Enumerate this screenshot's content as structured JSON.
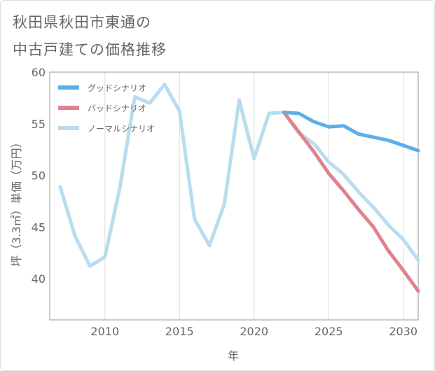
{
  "chart_data": {
    "type": "line",
    "title_line1": "秋田県秋田市東通の",
    "title_line2": "中古戸建ての価格推移",
    "xlabel": "年",
    "ylabel": "坪（3.3㎡）単価（万円）",
    "xlim": [
      2006.3,
      2031
    ],
    "ylim": [
      36,
      60
    ],
    "x_ticks": [
      2010,
      2015,
      2020,
      2025,
      2030
    ],
    "y_ticks": [
      40,
      45,
      50,
      55,
      60
    ],
    "grid": "vertical",
    "legend_position": "top-left",
    "series": [
      {
        "name": "グッドシナリオ",
        "color": "#5aafe8",
        "x": [
          2022,
          2023,
          2024,
          2025,
          2026,
          2027,
          2028,
          2029,
          2030,
          2031
        ],
        "values": [
          56.1,
          56.0,
          55.2,
          54.7,
          54.8,
          54.0,
          53.7,
          53.4,
          52.9,
          52.4
        ]
      },
      {
        "name": "バッドシナリオ",
        "color": "#e0828d",
        "x": [
          2022,
          2023,
          2024,
          2025,
          2026,
          2027,
          2028,
          2029,
          2030,
          2031
        ],
        "values": [
          56.1,
          54.2,
          52.3,
          50.2,
          48.5,
          46.7,
          45.0,
          42.7,
          40.8,
          38.8
        ]
      },
      {
        "name": "ノーマルシナリオ",
        "color": "#b9dcee",
        "x": [
          2007,
          2008,
          2009,
          2010,
          2011,
          2012,
          2013,
          2014,
          2015,
          2016,
          2017,
          2018,
          2019,
          2020,
          2021,
          2022,
          2023,
          2024,
          2025,
          2026,
          2027,
          2028,
          2029,
          2030,
          2031
        ],
        "values": [
          48.9,
          44.1,
          41.2,
          42.1,
          48.8,
          57.6,
          57.0,
          58.8,
          56.2,
          45.8,
          43.2,
          47.2,
          57.3,
          51.6,
          56.0,
          56.1,
          54.1,
          53.1,
          51.3,
          50.1,
          48.4,
          46.9,
          45.2,
          43.8,
          41.8
        ]
      }
    ]
  }
}
